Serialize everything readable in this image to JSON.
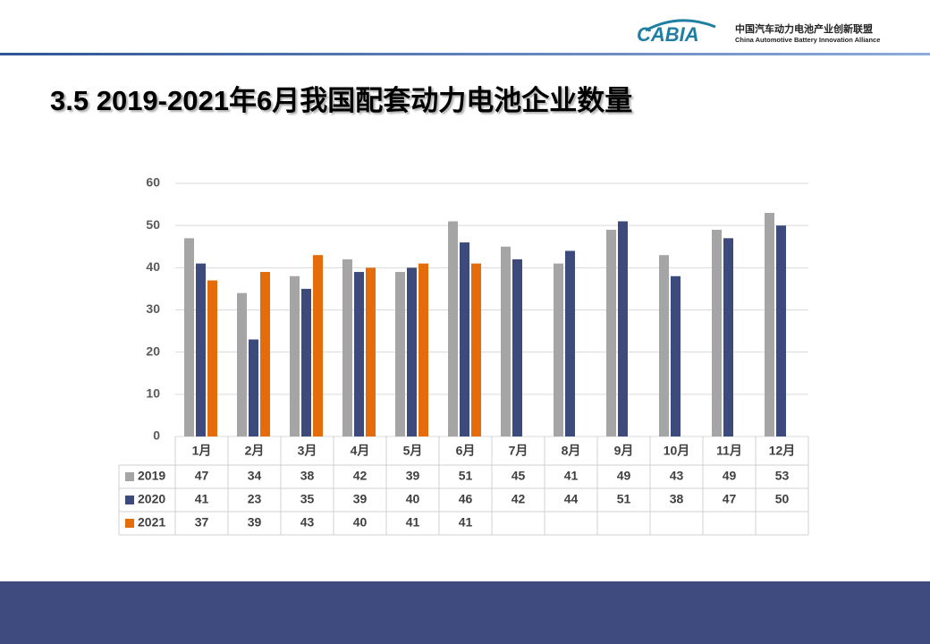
{
  "header": {
    "logo_mark": "CABIA",
    "org_cn": "中国汽车动力电池产业创新联盟",
    "org_en": "China Automotive Battery Innovation Alliance"
  },
  "chart_data": {
    "type": "bar",
    "title": "3.5 2019-2021年6月我国配套动力电池企业数量",
    "categories": [
      "1月",
      "2月",
      "3月",
      "4月",
      "5月",
      "6月",
      "7月",
      "8月",
      "9月",
      "10月",
      "11月",
      "12月"
    ],
    "series": [
      {
        "name": "2019",
        "color": "#a5a5a5",
        "values": [
          47,
          34,
          38,
          42,
          39,
          51,
          45,
          41,
          49,
          43,
          49,
          53
        ]
      },
      {
        "name": "2020",
        "color": "#3d4a7c",
        "values": [
          41,
          23,
          35,
          39,
          40,
          46,
          42,
          44,
          51,
          38,
          47,
          50
        ]
      },
      {
        "name": "2021",
        "color": "#e46c0a",
        "values": [
          37,
          39,
          43,
          40,
          41,
          41,
          null,
          null,
          null,
          null,
          null,
          null
        ]
      }
    ],
    "ylim": [
      0,
      60
    ],
    "yticks": [
      0,
      10,
      20,
      30,
      40,
      50,
      60
    ],
    "grid": true,
    "data_table": true
  }
}
